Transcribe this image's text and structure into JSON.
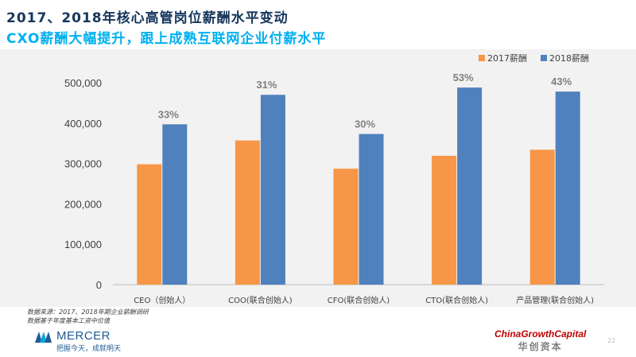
{
  "header": {
    "title": "2017、2018年核心高管岗位薪酬水平变动",
    "subtitle": "CXO薪酬大幅提升，跟上成熟互联网企业付薪水平"
  },
  "chart_data": {
    "type": "bar",
    "categories": [
      "CEO（创始人）",
      "COO(联合创始人)",
      "CFO(联合创始人)",
      "CTO(联合创始人)",
      "产品管理(联合创始人)"
    ],
    "series": [
      {
        "name": "2017薪酬",
        "color": "#F79646",
        "values": [
          298000,
          357000,
          287000,
          319000,
          334000
        ]
      },
      {
        "name": "2018薪酬",
        "color": "#4F81BD",
        "values": [
          397000,
          470000,
          373000,
          488000,
          478000
        ]
      }
    ],
    "annotations": [
      "33%",
      "31%",
      "30%",
      "53%",
      "43%"
    ],
    "ylim": [
      0,
      500000
    ],
    "yticks": [
      0,
      100000,
      200000,
      300000,
      400000,
      500000
    ],
    "ytick_labels": [
      "0",
      "100,000",
      "200,000",
      "300,000",
      "400,000",
      "500,000"
    ],
    "legend_position": "top-right",
    "grid": false
  },
  "footer": {
    "source_line1": "数据来源：2017、2018年期企业薪酬调研",
    "source_line2": "数据基于年度基本工资中位值",
    "mercer_name": "MERCER",
    "mercer_slogan": "把握今天，成就明天",
    "cgc_en": "ChinaGrowthCapital",
    "cgc_cn": "华创资本",
    "page_number": "22"
  },
  "colors": {
    "title": "#16365C",
    "subtitle": "#00B0F0",
    "bar_2017": "#F79646",
    "bar_2018": "#4F81BD",
    "panel_bg": "#F2F2F2"
  }
}
